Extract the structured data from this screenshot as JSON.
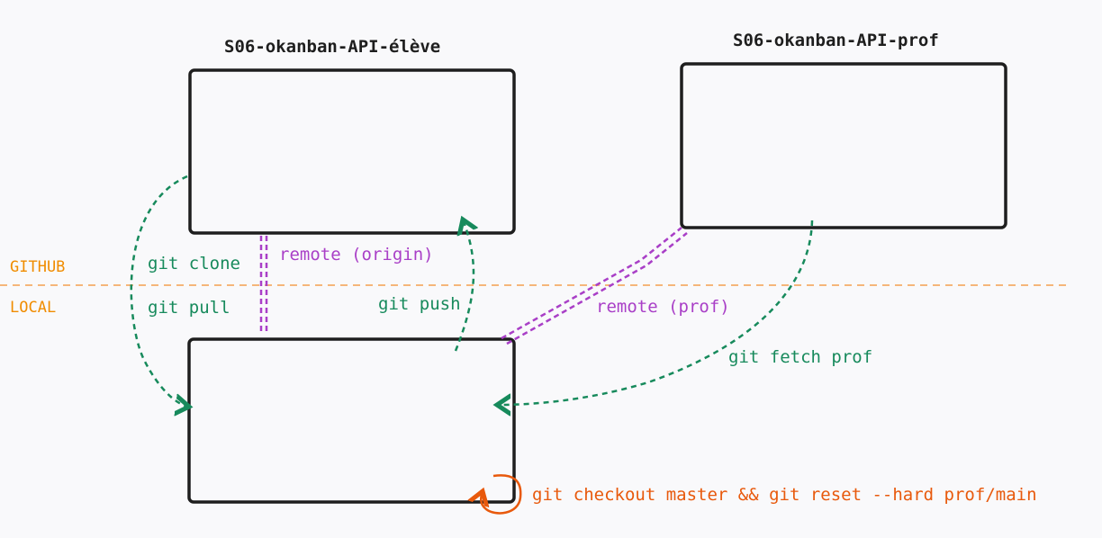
{
  "repos": {
    "student": {
      "title": "S06-okanban-API-élève"
    },
    "teacher": {
      "title": "S06-okanban-API-prof"
    }
  },
  "zones": {
    "github": "GITHUB",
    "local": "LOCAL"
  },
  "edges": {
    "clone": "git clone",
    "pull": "git pull",
    "push": "git push",
    "remote_origin": "remote (origin)",
    "remote_prof": "remote (prof)",
    "fetch_prof": "git fetch prof",
    "reset": "git checkout master && git reset --hard prof/main"
  },
  "colors": {
    "git_commands": "#178a5c",
    "remotes": "#a93fc7",
    "zones_divider": "#f5b67a",
    "zone_labels": "#f08c00",
    "reset_command": "#e8590c",
    "box_stroke": "#1e1e1e"
  }
}
